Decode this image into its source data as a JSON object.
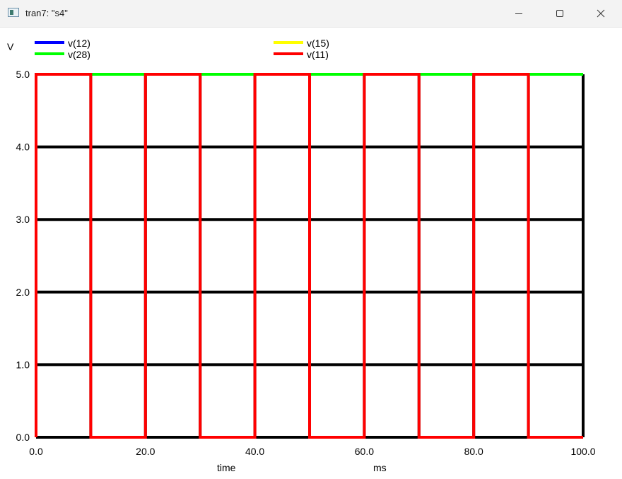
{
  "window": {
    "title": "tran7: \"s4\"",
    "controls": [
      "minimize",
      "maximize",
      "close"
    ]
  },
  "chart_data": {
    "type": "line",
    "title": "",
    "xlabel": "time",
    "xunit": "ms",
    "ylabel": "V",
    "xlim": [
      0,
      100
    ],
    "ylim": [
      0,
      5
    ],
    "xticks": [
      "0.0",
      "20.0",
      "40.0",
      "60.0",
      "80.0",
      "100.0"
    ],
    "yticks": [
      "0.0",
      "1.0",
      "2.0",
      "3.0",
      "4.0",
      "5.0"
    ],
    "grid": true,
    "legend_position": "top",
    "series": [
      {
        "name": "v(12)",
        "color": "#0000ff",
        "x": [
          0,
          100
        ],
        "y": [
          5,
          5
        ]
      },
      {
        "name": "v(15)",
        "color": "#ffff00",
        "x": [
          0,
          100
        ],
        "y": [
          5,
          5
        ]
      },
      {
        "name": "v(28)",
        "color": "#00ff00",
        "x": [
          0,
          100
        ],
        "y": [
          5,
          5
        ]
      },
      {
        "name": "v(11)",
        "color": "#ff0000",
        "x": [
          0,
          0,
          10,
          10,
          20,
          20,
          30,
          30,
          40,
          40,
          50,
          50,
          60,
          60,
          70,
          70,
          80,
          80,
          90,
          90,
          100
        ],
        "y": [
          0,
          5,
          5,
          0,
          0,
          5,
          5,
          0,
          0,
          5,
          5,
          0,
          0,
          5,
          5,
          0,
          0,
          5,
          5,
          0,
          0
        ]
      }
    ]
  }
}
